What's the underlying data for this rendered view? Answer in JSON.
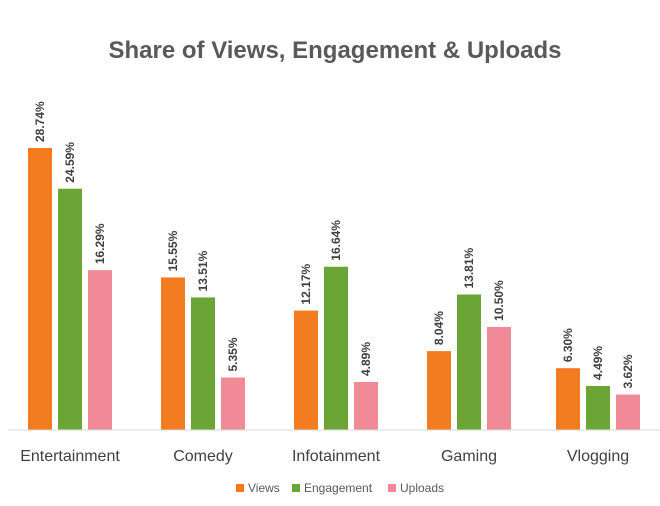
{
  "chart_data": {
    "type": "bar",
    "title": "Share of Views, Engagement & Uploads",
    "categories": [
      "Entertainment",
      "Comedy",
      "Infotainment",
      "Gaming",
      "Vlogging"
    ],
    "series": [
      {
        "name": "Views",
        "values": [
          28.74,
          15.55,
          12.17,
          8.04,
          6.3
        ],
        "labels": [
          "28.74%",
          "15.55%",
          "12.17%",
          "8.04%",
          "6.30%"
        ],
        "color": "#F47C20"
      },
      {
        "name": "Engagement",
        "values": [
          24.59,
          13.51,
          16.64,
          13.81,
          4.49
        ],
        "labels": [
          "24.59%",
          "13.51%",
          "16.64%",
          "13.81%",
          "4.49%"
        ],
        "color": "#6AA536"
      },
      {
        "name": "Uploads",
        "values": [
          16.29,
          5.35,
          4.89,
          10.5,
          3.62
        ],
        "labels": [
          "16.29%",
          "5.35%",
          "4.89%",
          "10.50%",
          "3.62%"
        ],
        "color": "#F08A96"
      }
    ],
    "ylim": [
      0,
      30
    ],
    "grid": false,
    "legend_position": "bottom"
  }
}
